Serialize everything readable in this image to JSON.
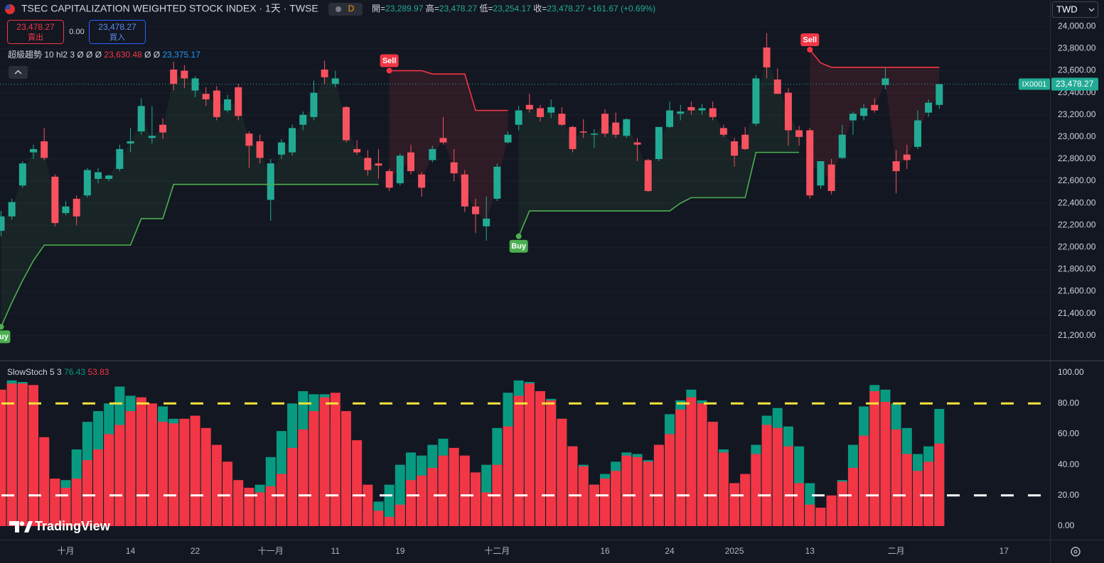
{
  "header": {
    "title": "TSEC CAPITALIZATION WEIGHTED STOCK INDEX · 1天 · TWSE",
    "interval_badge": "D",
    "ohlc_legend": [
      {
        "label": "開=",
        "value": "23,289.97"
      },
      {
        "label": "高=",
        "value": "23,478.27"
      },
      {
        "label": "低=",
        "value": "23,254.17"
      },
      {
        "label": "收=",
        "value": "23,478.27"
      }
    ],
    "change": "+161.67 (+0.69%)",
    "sell_price": "23,478.27",
    "sell_label": "賣出",
    "spread": "0.00",
    "buy_price": "23,478.27",
    "buy_label": "買入",
    "currency": "TWD",
    "price_tag_symbol": "IX0001",
    "price_tag_value": "23,478.27",
    "watermark": "TradingView"
  },
  "chart_data": [
    {
      "type": "candlestick",
      "categories": [
        null,
        null,
        null,
        null,
        null,
        null,
        "十月",
        null,
        null,
        null,
        null,
        null,
        "14",
        null,
        null,
        null,
        null,
        null,
        "22",
        null,
        null,
        null,
        null,
        null,
        null,
        "十一月",
        null,
        null,
        null,
        null,
        null,
        "11",
        null,
        null,
        null,
        null,
        null,
        "19",
        null,
        null,
        null,
        null,
        null,
        null,
        null,
        null,
        "十二月",
        null,
        null,
        null,
        null,
        null,
        null,
        null,
        null,
        null,
        "16",
        null,
        null,
        null,
        null,
        null,
        "24",
        null,
        null,
        null,
        null,
        null,
        "2025",
        null,
        null,
        null,
        null,
        null,
        null,
        "13",
        null,
        null,
        null,
        null,
        null,
        null,
        null,
        "二月",
        null,
        null,
        null,
        null,
        null,
        null,
        null,
        null,
        null,
        "17",
        null,
        null,
        null
      ],
      "open": [
        22150,
        22280,
        22560,
        22860,
        22960,
        22640,
        22310,
        22440,
        22470,
        22620,
        22620,
        22710,
        22940,
        23050,
        22990,
        23110,
        23610,
        23600,
        23420,
        23390,
        23420,
        23240,
        23450,
        23030,
        22960,
        22430,
        22840,
        22860,
        23110,
        23180,
        23610,
        23480,
        23270,
        22890,
        22810,
        22760,
        22690,
        22580,
        22860,
        22660,
        22790,
        22990,
        22770,
        22660,
        22370,
        22190,
        22440,
        22950,
        23110,
        23290,
        23260,
        23220,
        23210,
        23090,
        23050,
        23020,
        23210,
        23130,
        23010,
        22950,
        22790,
        22800,
        23090,
        23210,
        23270,
        23240,
        23260,
        23080,
        22960,
        23020,
        23120,
        23810,
        23520,
        23400,
        23060,
        23060,
        22560,
        22750,
        22810,
        23150,
        23190,
        23290,
        23470,
        22780,
        22840,
        22910,
        23220,
        23289.97,
        null,
        null,
        null,
        null,
        null,
        null,
        null,
        null,
        null
      ],
      "high": [
        22330,
        22440,
        22780,
        22930,
        23080,
        22660,
        22420,
        22470,
        22720,
        22720,
        22660,
        22930,
        23080,
        23350,
        23280,
        23170,
        23680,
        23650,
        23550,
        23450,
        23460,
        23380,
        23480,
        23050,
        23020,
        22800,
        22980,
        23110,
        23230,
        23510,
        23690,
        23600,
        23280,
        22970,
        22880,
        22890,
        22710,
        22850,
        22930,
        22680,
        22920,
        23180,
        22890,
        22700,
        22440,
        22460,
        22760,
        23050,
        23280,
        23390,
        23290,
        23340,
        23270,
        23100,
        23160,
        23070,
        23250,
        23220,
        23170,
        22990,
        22800,
        23090,
        23320,
        23290,
        23320,
        23300,
        23320,
        23110,
        22990,
        23090,
        23560,
        23940,
        23620,
        23440,
        23100,
        23080,
        22780,
        22800,
        23110,
        23230,
        23300,
        23350,
        23630,
        22880,
        22930,
        23240,
        23340,
        23478.27,
        null,
        null,
        null,
        null,
        null,
        null,
        null,
        null,
        null
      ],
      "low": [
        22100,
        22250,
        22540,
        22800,
        22790,
        22190,
        22290,
        22200,
        22450,
        22580,
        22600,
        22690,
        22860,
        23020,
        22940,
        22980,
        23420,
        23440,
        23360,
        23280,
        23150,
        23220,
        23150,
        22720,
        22760,
        22240,
        22800,
        22830,
        23060,
        23150,
        23480,
        23450,
        22950,
        22840,
        22650,
        22620,
        22510,
        22560,
        22660,
        22460,
        22770,
        22930,
        22600,
        22320,
        22130,
        22060,
        22420,
        22940,
        23060,
        23220,
        23140,
        23170,
        23100,
        22860,
        22990,
        22900,
        23000,
        22990,
        22990,
        22780,
        22500,
        22780,
        23080,
        23150,
        23200,
        23200,
        23150,
        23000,
        22730,
        22880,
        23100,
        23530,
        23390,
        22920,
        22920,
        22440,
        22530,
        22480,
        22800,
        23020,
        23150,
        23220,
        23430,
        22490,
        22710,
        22890,
        23180,
        23254.17,
        null,
        null,
        null,
        null,
        null,
        null,
        null,
        null,
        null
      ],
      "close": [
        22280,
        22410,
        22760,
        22890,
        22810,
        22220,
        22370,
        22280,
        22700,
        22680,
        22650,
        22890,
        22960,
        23280,
        23010,
        23040,
        23480,
        23530,
        23530,
        23340,
        23180,
        23340,
        23190,
        22920,
        22810,
        22760,
        22950,
        23080,
        23200,
        23400,
        23540,
        23530,
        22970,
        22860,
        22700,
        22740,
        22540,
        22830,
        22690,
        22540,
        22890,
        22950,
        22670,
        22370,
        22300,
        22260,
        22730,
        23020,
        23240,
        23250,
        23180,
        23270,
        23110,
        22890,
        23040,
        23030,
        23030,
        23020,
        23160,
        22930,
        22510,
        23090,
        23240,
        23230,
        23240,
        23260,
        23180,
        23020,
        22830,
        22890,
        23530,
        23630,
        23390,
        23060,
        23000,
        22470,
        22780,
        22510,
        23020,
        23210,
        23260,
        23240,
        23530,
        22690,
        22790,
        23150,
        23310,
        23478.27,
        null,
        null,
        null,
        null,
        null,
        null,
        null,
        null,
        null
      ],
      "up_color": "#22ab94",
      "down_color": "#f7525f",
      "ylim": [
        20980,
        24240
      ],
      "yticks": [
        {
          "value": 21200,
          "label": "21,200.00"
        },
        {
          "value": 21400,
          "label": "21,400.00"
        },
        {
          "value": 21600,
          "label": "21,600.00"
        },
        {
          "value": 21800,
          "label": "21,800.00"
        },
        {
          "value": 22000,
          "label": "22,000.00"
        },
        {
          "value": 22200,
          "label": "22,200.00"
        },
        {
          "value": 22400,
          "label": "22,400.00"
        },
        {
          "value": 22600,
          "label": "22,600.00"
        },
        {
          "value": 22800,
          "label": "22,800.00"
        },
        {
          "value": 23000,
          "label": "23,000.00"
        },
        {
          "value": 23200,
          "label": "23,200.00"
        },
        {
          "value": 23400,
          "label": "23,400.00"
        },
        {
          "value": 23600,
          "label": "23,600.00"
        },
        {
          "value": 23800,
          "label": "23,800.00"
        },
        {
          "value": 24000,
          "label": "24,000.00"
        }
      ],
      "grid": true,
      "supertrend": {
        "label": "超級趨勢 10 hl2 3",
        "legend_values": [
          {
            "text": "Ø Ø Ø",
            "color": "#d1d4dc"
          },
          {
            "text": "23,630.48",
            "color": "#f23645"
          },
          {
            "text": "Ø Ø",
            "color": "#d1d4dc"
          },
          {
            "text": "23,375.17",
            "color": "#2196f3"
          }
        ],
        "up_values": [
          21280,
          21500,
          21700,
          21880,
          22020,
          22020,
          22020,
          22020,
          22020,
          22020,
          22020,
          22020,
          22020,
          22260,
          22260,
          22260,
          22570,
          22570,
          22570,
          22570,
          22570,
          22570,
          22570,
          22570,
          22570,
          22570,
          22570,
          22570,
          22570,
          22570,
          22570,
          22570,
          22570,
          22570,
          22570,
          22570,
          null,
          null,
          null,
          null,
          null,
          null,
          null,
          null,
          null,
          null,
          null,
          null,
          22100,
          22330,
          22330,
          22330,
          22330,
          22330,
          22330,
          22330,
          22330,
          22330,
          22330,
          22330,
          22330,
          22330,
          22330,
          22400,
          22450,
          22450,
          22450,
          22450,
          22450,
          22450,
          22860,
          22860,
          22860,
          22860,
          22860,
          null,
          null,
          null,
          null,
          null,
          null,
          null,
          null,
          null,
          null,
          null,
          null,
          null,
          null,
          null,
          null,
          null,
          null,
          null,
          null,
          null,
          null
        ],
        "down_values": [
          null,
          null,
          null,
          null,
          null,
          null,
          null,
          null,
          null,
          null,
          null,
          null,
          null,
          null,
          null,
          null,
          null,
          null,
          null,
          null,
          null,
          null,
          null,
          null,
          null,
          null,
          null,
          null,
          null,
          null,
          null,
          null,
          null,
          null,
          null,
          null,
          23600,
          23600,
          23600,
          23600,
          23570,
          23570,
          23570,
          23570,
          23240,
          23240,
          23240,
          23240,
          null,
          null,
          null,
          null,
          null,
          null,
          null,
          null,
          null,
          null,
          null,
          null,
          null,
          null,
          null,
          null,
          null,
          null,
          null,
          null,
          null,
          null,
          null,
          null,
          null,
          null,
          null,
          23790,
          23670,
          23630.48,
          23630.48,
          23630.48,
          23630.48,
          23630.48,
          23630.48,
          23630.48,
          23630.48,
          23630.48,
          23630.48,
          23630.48,
          null,
          null,
          null,
          null,
          null,
          null,
          null,
          null,
          null
        ],
        "up_color": "#4caf50",
        "down_color": "#f23645",
        "buy_label": "Buy",
        "sell_label": "Sell"
      }
    },
    {
      "type": "bar",
      "label": "SlowStoch 5 3",
      "k_values": [
        88,
        95,
        94,
        89,
        55,
        29,
        30,
        50,
        68,
        75,
        80,
        91,
        85,
        82,
        76,
        78,
        70,
        65,
        60,
        50,
        40,
        30,
        25,
        20,
        27,
        45,
        62,
        80,
        88,
        86,
        86,
        70,
        50,
        25,
        8,
        16,
        27,
        40,
        48,
        46,
        53,
        57,
        45,
        35,
        20,
        40,
        64,
        87,
        95,
        94,
        88,
        83,
        70,
        52,
        40,
        27,
        34,
        42,
        48,
        47,
        43,
        50,
        73,
        82,
        89,
        82,
        68,
        50,
        28,
        32,
        53,
        72,
        77,
        65,
        52,
        28,
        10,
        9,
        30,
        53,
        78,
        92,
        89,
        80,
        64,
        47,
        52,
        76.43,
        null,
        null,
        null,
        null,
        null,
        null,
        null,
        null,
        null
      ],
      "d_values": [
        89,
        93,
        93,
        92,
        58,
        31,
        25,
        31,
        43,
        50,
        60,
        66,
        75,
        84,
        80,
        68,
        67,
        70,
        72,
        64,
        53,
        42,
        30,
        25,
        22,
        26,
        34,
        51,
        63,
        75,
        84,
        87,
        75,
        56,
        27,
        10,
        6,
        14,
        30,
        33,
        38,
        46,
        51,
        46,
        35,
        22,
        40,
        65,
        85,
        93,
        88,
        82,
        70,
        52,
        39,
        27,
        31,
        36,
        46,
        45,
        42,
        53,
        60,
        76,
        84,
        80,
        68,
        48,
        28,
        34,
        47,
        66,
        64,
        52,
        28,
        14,
        12,
        20,
        29,
        38,
        59,
        88,
        81,
        63,
        47,
        36,
        42,
        53.83,
        null,
        null,
        null,
        null,
        null,
        null,
        null,
        null,
        null
      ],
      "k_color": "#089981",
      "d_color": "#f23645",
      "levels": [
        {
          "value": 80,
          "color": "#f5e33b"
        },
        {
          "value": 20,
          "color": "#ffffff"
        }
      ],
      "ylim": [
        -8.8,
        107.9
      ],
      "yticks": [
        {
          "value": 0,
          "label": "0.00"
        },
        {
          "value": 20,
          "label": "20.00"
        },
        {
          "value": 40,
          "label": "40.00"
        },
        {
          "value": 60,
          "label": "60.00"
        },
        {
          "value": 80,
          "label": "80.00"
        },
        {
          "value": 100,
          "label": "100.00"
        }
      ]
    }
  ]
}
